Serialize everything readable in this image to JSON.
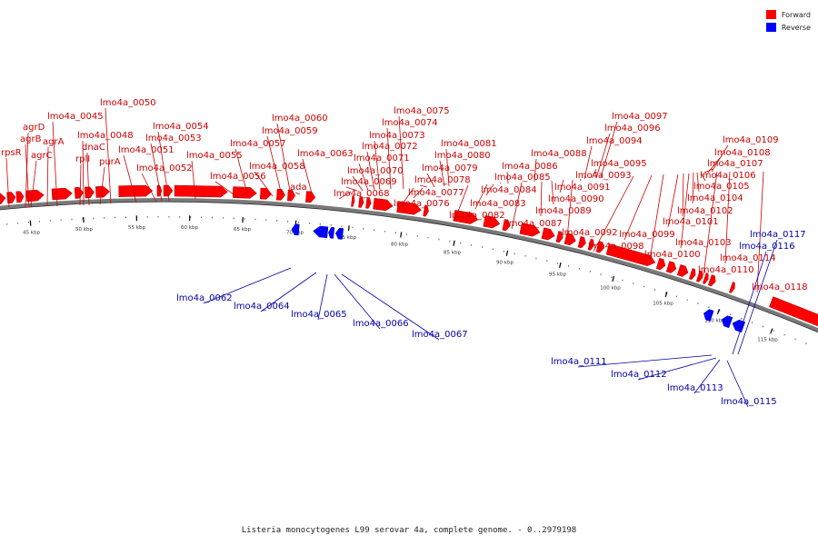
{
  "caption": "Listeria monocytogenes L99 serovar 4a, complete genome. - 0..2979198",
  "legend": [
    {
      "label": "Forward",
      "color": "#ff0000"
    },
    {
      "label": "Reverse",
      "color": "#0000ff"
    }
  ],
  "colors": {
    "forward": "#ff0000",
    "reverse": "#0000ff",
    "backbone": "#7a7a7a",
    "forward_label": "#cc0000",
    "reverse_label": "#0000aa"
  },
  "scale_ticks": [
    "45 kbp",
    "50 kbp",
    "55 kbp",
    "60 kbp",
    "65 kbp",
    "70 kbp",
    "75 kbp",
    "80 kbp",
    "85 kbp",
    "90 kbp",
    "95 kbp",
    "100 kbp",
    "105 kbp",
    "110 kbp",
    "115 kbp"
  ],
  "forward_genes": [
    "rpsR",
    "agrD",
    "agrB",
    "agrC",
    "agrA",
    "lmo4a_0045",
    "lmo4a_0048",
    "rplI",
    "dnaC",
    "purA",
    "lmo4a_0050",
    "lmo4a_0051",
    "lmo4a_0052",
    "lmo4a_0053",
    "lmo4a_0054",
    "lmo4a_0055",
    "lmo4a_0056",
    "lmo4a_0057",
    "lmo4a_0058",
    "lmo4a_0059",
    "lmo4a_0060",
    "ada",
    "lmo4a_0063",
    "lmo4a_0068",
    "lmo4a_0069",
    "lmo4a_0070",
    "lmo4a_0071",
    "lmo4a_0072",
    "lmo4a_0073",
    "lmo4a_0074",
    "lmo4a_0075",
    "lmo4a_0076",
    "lmo4a_0077",
    "lmo4a_0078",
    "lmo4a_0079",
    "lmo4a_0080",
    "lmo4a_0081",
    "lmo4a_0082",
    "lmo4a_0083",
    "lmo4a_0084",
    "lmo4a_0085",
    "lmo4a_0086",
    "lmo4a_0087",
    "lmo4a_0088",
    "lmo4a_0089",
    "lmo4a_0090",
    "lmo4a_0091",
    "lmo4a_0092",
    "lmo4a_0093",
    "lmo4a_0094",
    "lmo4a_0095",
    "lmo4a_0096",
    "lmo4a_0097",
    "lmo4a_0098",
    "lmo4a_0099",
    "lmo4a_0100",
    "lmo4a_0101",
    "lmo4a_0102",
    "lmo4a_0103",
    "lmo4a_0104",
    "lmo4a_0105",
    "lmo4a_0106",
    "lmo4a_0107",
    "lmo4a_0108",
    "lmo4a_0109",
    "lmo4a_0110",
    "lmo4a_0114",
    "lmo4a_0118"
  ],
  "reverse_genes": [
    "lmo4a_0062",
    "lmo4a_0064",
    "lmo4a_0065",
    "lmo4a_0066",
    "lmo4a_0067",
    "lmo4a_0111",
    "lmo4a_0112",
    "lmo4a_0113",
    "lmo4a_0115",
    "lmo4a_0116",
    "lmo4a_0117"
  ]
}
